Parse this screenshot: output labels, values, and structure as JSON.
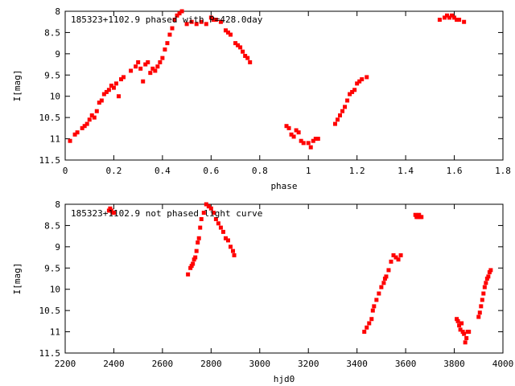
{
  "chart_data": [
    {
      "type": "scatter",
      "title": "185323+1102.9 phased with P=428.0day",
      "xlabel": "phase",
      "ylabel": "I[mag]",
      "xlim": [
        0,
        1.8
      ],
      "ylim": [
        11.5,
        8
      ],
      "y_inverted": true,
      "xticks": [
        0,
        0.2,
        0.4,
        0.6,
        0.8,
        1,
        1.2,
        1.4,
        1.6,
        1.8
      ],
      "xtick_labels": [
        "0",
        "0.2",
        "0.4",
        "0.6",
        "0.8",
        "1",
        "1.2",
        "1.4",
        "1.6",
        "1.8"
      ],
      "yticks": [
        8,
        8.5,
        9,
        9.5,
        10,
        10.5,
        11,
        11.5
      ],
      "ytick_labels": [
        "8",
        "8.5",
        "9",
        "9.5",
        "10",
        "10.5",
        "11",
        "11.5"
      ],
      "grid": false,
      "marker_color": "#ff0000",
      "points": [
        [
          0.02,
          11.05
        ],
        [
          0.04,
          10.9
        ],
        [
          0.05,
          10.85
        ],
        [
          0.07,
          10.75
        ],
        [
          0.08,
          10.7
        ],
        [
          0.09,
          10.65
        ],
        [
          0.1,
          10.55
        ],
        [
          0.11,
          10.45
        ],
        [
          0.12,
          10.5
        ],
        [
          0.13,
          10.35
        ],
        [
          0.14,
          10.15
        ],
        [
          0.15,
          10.1
        ],
        [
          0.16,
          9.95
        ],
        [
          0.17,
          9.9
        ],
        [
          0.18,
          9.85
        ],
        [
          0.19,
          9.75
        ],
        [
          0.2,
          9.8
        ],
        [
          0.21,
          9.7
        ],
        [
          0.22,
          10.0
        ],
        [
          0.23,
          9.6
        ],
        [
          0.24,
          9.55
        ],
        [
          0.27,
          9.4
        ],
        [
          0.29,
          9.3
        ],
        [
          0.3,
          9.2
        ],
        [
          0.31,
          9.35
        ],
        [
          0.32,
          9.65
        ],
        [
          0.33,
          9.25
        ],
        [
          0.34,
          9.2
        ],
        [
          0.35,
          9.45
        ],
        [
          0.36,
          9.35
        ],
        [
          0.37,
          9.4
        ],
        [
          0.38,
          9.3
        ],
        [
          0.39,
          9.2
        ],
        [
          0.4,
          9.1
        ],
        [
          0.41,
          8.9
        ],
        [
          0.42,
          8.75
        ],
        [
          0.43,
          8.55
        ],
        [
          0.44,
          8.4
        ],
        [
          0.45,
          8.2
        ],
        [
          0.46,
          8.1
        ],
        [
          0.47,
          8.05
        ],
        [
          0.48,
          8.0
        ],
        [
          0.5,
          8.3
        ],
        [
          0.52,
          8.25
        ],
        [
          0.54,
          8.3
        ],
        [
          0.56,
          8.25
        ],
        [
          0.58,
          8.3
        ],
        [
          0.6,
          8.15
        ],
        [
          0.61,
          8.2
        ],
        [
          0.62,
          8.2
        ],
        [
          0.64,
          8.25
        ],
        [
          0.66,
          8.45
        ],
        [
          0.67,
          8.5
        ],
        [
          0.68,
          8.55
        ],
        [
          0.7,
          8.75
        ],
        [
          0.71,
          8.8
        ],
        [
          0.72,
          8.85
        ],
        [
          0.73,
          8.95
        ],
        [
          0.74,
          9.05
        ],
        [
          0.75,
          9.1
        ],
        [
          0.76,
          9.2
        ],
        [
          0.91,
          10.7
        ],
        [
          0.92,
          10.75
        ],
        [
          0.93,
          10.9
        ],
        [
          0.94,
          10.95
        ],
        [
          0.95,
          10.8
        ],
        [
          0.96,
          10.85
        ],
        [
          0.97,
          11.05
        ],
        [
          0.98,
          11.1
        ],
        [
          1.0,
          11.1
        ],
        [
          1.01,
          11.2
        ],
        [
          1.02,
          11.05
        ],
        [
          1.03,
          11.0
        ],
        [
          1.04,
          11.0
        ],
        [
          1.11,
          10.65
        ],
        [
          1.12,
          10.55
        ],
        [
          1.13,
          10.45
        ],
        [
          1.14,
          10.35
        ],
        [
          1.15,
          10.25
        ],
        [
          1.16,
          10.1
        ],
        [
          1.17,
          9.95
        ],
        [
          1.18,
          9.9
        ],
        [
          1.19,
          9.85
        ],
        [
          1.2,
          9.7
        ],
        [
          1.21,
          9.65
        ],
        [
          1.22,
          9.6
        ],
        [
          1.24,
          9.55
        ],
        [
          1.54,
          8.2
        ],
        [
          1.56,
          8.15
        ],
        [
          1.57,
          8.1
        ],
        [
          1.58,
          8.15
        ],
        [
          1.59,
          8.1
        ],
        [
          1.6,
          8.15
        ],
        [
          1.61,
          8.2
        ],
        [
          1.62,
          8.2
        ],
        [
          1.64,
          8.25
        ]
      ]
    },
    {
      "type": "scatter",
      "title": "185323+1102.9 not phased light curve",
      "xlabel": "hjd0",
      "ylabel": "I[mag]",
      "xlim": [
        2200,
        4000
      ],
      "ylim": [
        11.5,
        8
      ],
      "y_inverted": true,
      "xticks": [
        2200,
        2400,
        2600,
        2800,
        3000,
        3200,
        3400,
        3600,
        3800,
        4000
      ],
      "xtick_labels": [
        "2200",
        "2400",
        "2600",
        "2800",
        "3000",
        "3200",
        "3400",
        "3600",
        "3800",
        "4000"
      ],
      "yticks": [
        8,
        8.5,
        9,
        9.5,
        10,
        10.5,
        11,
        11.5
      ],
      "ytick_labels": [
        "8",
        "8.5",
        "9",
        "9.5",
        "10",
        "10.5",
        "11",
        "11.5"
      ],
      "grid": false,
      "marker_color": "#ff0000",
      "points": [
        [
          2380,
          8.15
        ],
        [
          2385,
          8.1
        ],
        [
          2390,
          8.15
        ],
        [
          2395,
          8.2
        ],
        [
          2400,
          8.2
        ],
        [
          2705,
          9.65
        ],
        [
          2715,
          9.5
        ],
        [
          2720,
          9.45
        ],
        [
          2725,
          9.4
        ],
        [
          2730,
          9.3
        ],
        [
          2735,
          9.25
        ],
        [
          2740,
          9.1
        ],
        [
          2745,
          8.9
        ],
        [
          2750,
          8.8
        ],
        [
          2755,
          8.55
        ],
        [
          2760,
          8.35
        ],
        [
          2770,
          8.2
        ],
        [
          2780,
          8.0
        ],
        [
          2790,
          8.05
        ],
        [
          2800,
          8.1
        ],
        [
          2810,
          8.2
        ],
        [
          2820,
          8.35
        ],
        [
          2830,
          8.45
        ],
        [
          2840,
          8.55
        ],
        [
          2850,
          8.65
        ],
        [
          2860,
          8.8
        ],
        [
          2870,
          8.85
        ],
        [
          2880,
          9.0
        ],
        [
          2890,
          9.1
        ],
        [
          2895,
          9.2
        ],
        [
          3430,
          11.0
        ],
        [
          3440,
          10.9
        ],
        [
          3450,
          10.8
        ],
        [
          3460,
          10.7
        ],
        [
          3465,
          10.5
        ],
        [
          3470,
          10.4
        ],
        [
          3480,
          10.25
        ],
        [
          3490,
          10.1
        ],
        [
          3500,
          9.95
        ],
        [
          3510,
          9.85
        ],
        [
          3515,
          9.75
        ],
        [
          3520,
          9.7
        ],
        [
          3530,
          9.55
        ],
        [
          3540,
          9.35
        ],
        [
          3550,
          9.2
        ],
        [
          3560,
          9.25
        ],
        [
          3570,
          9.3
        ],
        [
          3580,
          9.2
        ],
        [
          3640,
          8.25
        ],
        [
          3645,
          8.3
        ],
        [
          3650,
          8.3
        ],
        [
          3655,
          8.25
        ],
        [
          3660,
          8.3
        ],
        [
          3665,
          8.3
        ],
        [
          3810,
          10.7
        ],
        [
          3815,
          10.75
        ],
        [
          3820,
          10.85
        ],
        [
          3825,
          10.95
        ],
        [
          3830,
          10.8
        ],
        [
          3835,
          11.0
        ],
        [
          3840,
          11.05
        ],
        [
          3845,
          11.25
        ],
        [
          3850,
          11.15
        ],
        [
          3855,
          11.0
        ],
        [
          3860,
          11.0
        ],
        [
          3900,
          10.65
        ],
        [
          3905,
          10.55
        ],
        [
          3910,
          10.4
        ],
        [
          3915,
          10.25
        ],
        [
          3920,
          10.1
        ],
        [
          3925,
          9.95
        ],
        [
          3930,
          9.85
        ],
        [
          3935,
          9.75
        ],
        [
          3940,
          9.7
        ],
        [
          3945,
          9.6
        ],
        [
          3950,
          9.55
        ]
      ]
    }
  ]
}
